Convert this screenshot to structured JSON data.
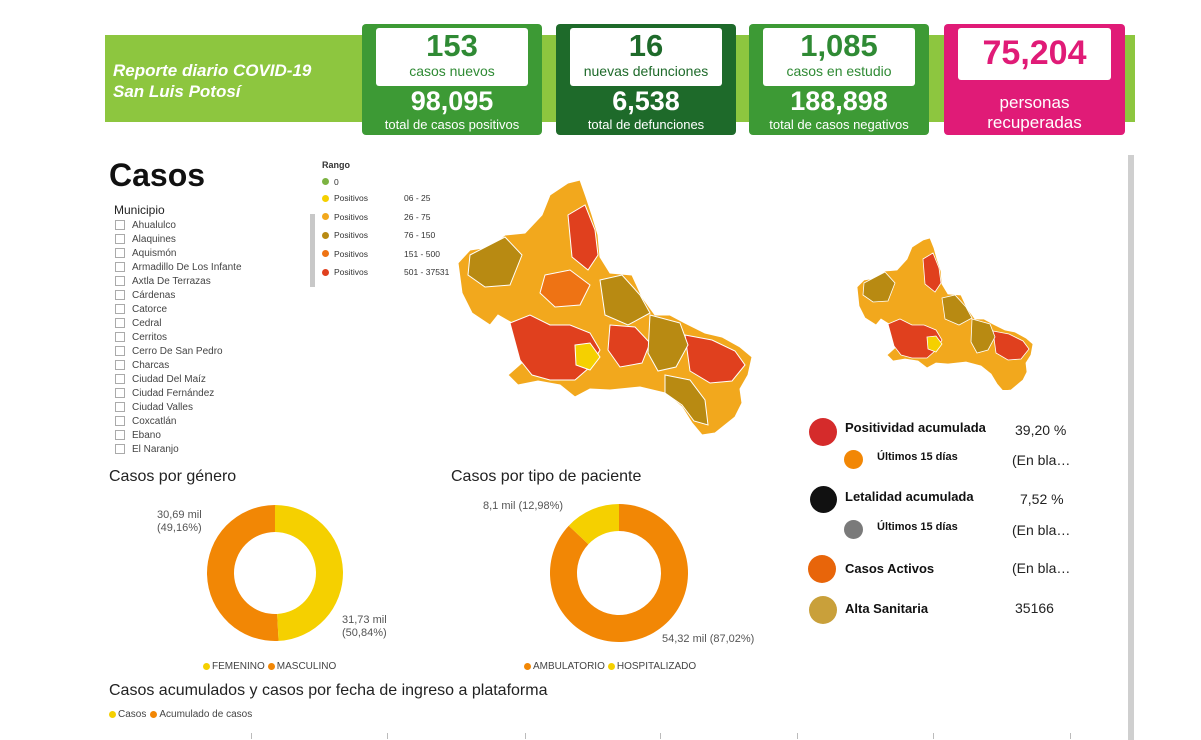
{
  "header": {
    "title_line1": "Reporte diario COVID-19",
    "title_line2": "San Luis Potosí",
    "cards": [
      {
        "big": "153",
        "label": "casos nuevos",
        "total": "98,095",
        "total_label": "total de casos positivos"
      },
      {
        "big": "16",
        "label": "nuevas defunciones",
        "total": "6,538",
        "total_label": "total de defunciones"
      },
      {
        "big": "1,085",
        "label": "casos en estudio",
        "total": "188,898",
        "total_label": "total de casos negativos"
      },
      {
        "big": "75,204",
        "label_line1": "personas",
        "label_line2": "recuperadas"
      }
    ]
  },
  "casos": {
    "title": "Casos",
    "filter_label": "Municipio",
    "municipios": [
      "Ahualulco",
      "Alaquines",
      "Aquismón",
      "Armadillo De Los Infante",
      "Axtla De Terrazas",
      "Cárdenas",
      "Catorce",
      "Cedral",
      "Cerritos",
      "Cerro De San Pedro",
      "Charcas",
      "Ciudad Del Maíz",
      "Ciudad Fernández",
      "Ciudad Valles",
      "Coxcatlán",
      "Ebano",
      "El Naranjo"
    ]
  },
  "range_legend": {
    "title": "Rango",
    "items": [
      {
        "label": "0",
        "value": "",
        "color": "#7cb342"
      },
      {
        "label": "Positivos",
        "value": "06 - 25",
        "color": "#f5d000"
      },
      {
        "label": "Positivos",
        "value": "26 - 75",
        "color": "#f2a81d"
      },
      {
        "label": "Positivos",
        "value": "76 - 150",
        "color": "#b88a12"
      },
      {
        "label": "Positivos",
        "value": "151 - 500",
        "color": "#ee7314"
      },
      {
        "label": "Positivos",
        "value": "501 - 37531",
        "color": "#e0401e"
      }
    ]
  },
  "gender": {
    "title": "Casos por género",
    "label_fem": "30,69 mil",
    "label_fem_pct": "(49,16%)",
    "label_masc": "31,73 mil",
    "label_masc_pct": "(50,84%)",
    "fem_share": 0.4916,
    "legend": [
      "FEMENINO",
      "MASCULINO"
    ],
    "colors": {
      "femenino": "#f5d000",
      "masculino": "#f28705"
    }
  },
  "patient_type": {
    "title": "Casos por tipo de paciente",
    "label_hosp": "8,1 mil (12,98%)",
    "label_amb": "54,32 mil (87,02%)",
    "hosp_share": 0.1298,
    "legend": [
      "AMBULATORIO",
      "HOSPITALIZADO"
    ],
    "colors": {
      "ambulatorio": "#f28705",
      "hospitalizado": "#f5d000"
    }
  },
  "indicators": {
    "positividad": {
      "label": "Positividad acumulada",
      "value": "39,20 %",
      "color": "#d52b2b"
    },
    "positividad_15": {
      "label": "Últimos 15 días",
      "value": "(En bla…",
      "color": "#f28705"
    },
    "letalidad": {
      "label": "Letalidad acumulada",
      "value": "7,52 %",
      "color": "#111111"
    },
    "letalidad_15": {
      "label": "Últimos 15 días",
      "value": "(En bla…",
      "color": "#7a7a7a"
    },
    "activos": {
      "label": "Casos Activos",
      "value": "(En bla…",
      "color": "#e8650a"
    },
    "alta": {
      "label": "Alta Sanitaria",
      "value": "35166",
      "color": "#c9a03a"
    }
  },
  "timeline": {
    "title": "Casos acumulados y casos por fecha de ingreso a plataforma",
    "legend": [
      "Casos",
      "Acumulado de casos"
    ],
    "colors": {
      "casos": "#f5d000",
      "acumulado": "#f28705"
    }
  }
}
